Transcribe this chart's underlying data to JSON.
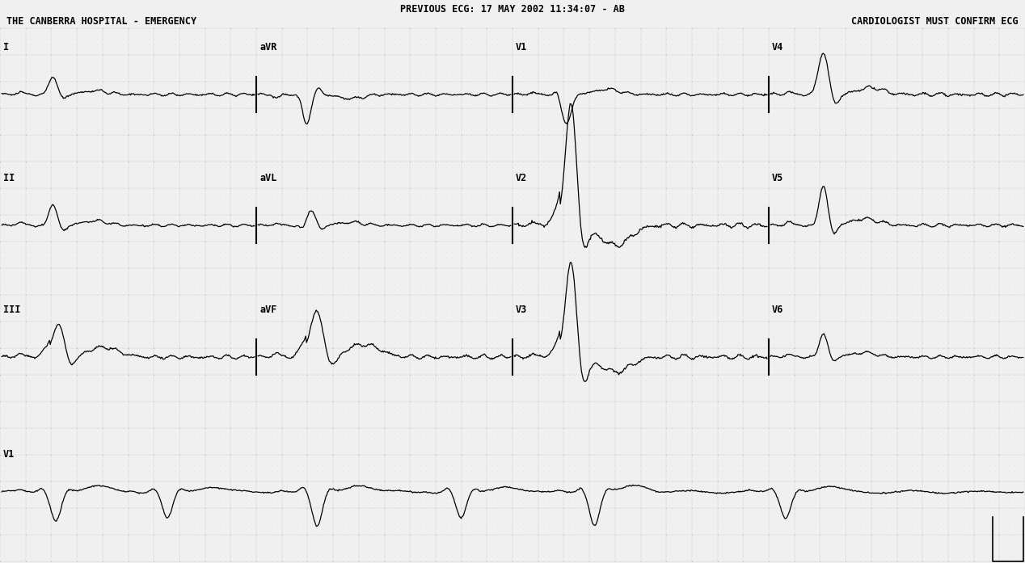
{
  "title_line1": "PREVIOUS ECG: 17 MAY 2002 11:34:07 - AB",
  "title_line2": "THE CANBERRA HOSPITAL - EMERGENCY",
  "title_right": "CARDIOLOGIST MUST CONFIRM ECG",
  "bg_color": "#f0f0f0",
  "paper_bg": "#f5f5f5",
  "grid_dot_color": "#aaaaaa",
  "grid_major_dot_color": "#888888",
  "line_color": "#000000",
  "text_color": "#000000",
  "fig_width": 12.68,
  "fig_height": 6.97,
  "dpi": 100
}
